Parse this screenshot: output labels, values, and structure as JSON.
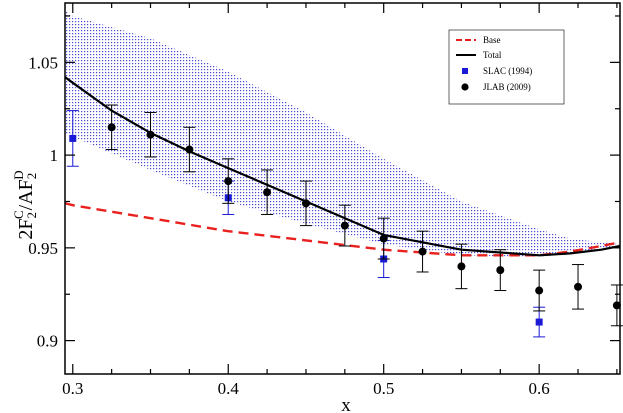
{
  "chart_data": {
    "type": "line",
    "xlabel": "x",
    "ylabel": {
      "prefix": "2F",
      "sub1": "2",
      "sup1": "C",
      "mid": "/AF",
      "sub2": "2",
      "sup2": "D"
    },
    "xlim": [
      0.295,
      0.652
    ],
    "ylim": [
      0.882,
      1.082
    ],
    "xticks": [
      0.3,
      0.4,
      0.5,
      0.6
    ],
    "xtick_labels": [
      "0.3",
      "0.4",
      "0.5",
      "0.6"
    ],
    "yticks": [
      0.9,
      0.95,
      1.0,
      1.05
    ],
    "ytick_labels": [
      "0.9",
      "0.95",
      "1",
      "1.05"
    ],
    "legend_position": "top-right",
    "colors": {
      "base": "#e8201e",
      "total": "#000000",
      "slac": "#1a1ad6",
      "jlab": "#000000",
      "band": "#4a4ad8"
    },
    "band": {
      "x": [
        0.295,
        0.3,
        0.35,
        0.4,
        0.45,
        0.5,
        0.55,
        0.6,
        0.62,
        0.652
      ],
      "upper": [
        1.078,
        1.075,
        1.063,
        1.045,
        1.023,
        0.998,
        0.975,
        0.96,
        0.955,
        0.952
      ],
      "lower": [
        1.012,
        1.01,
        0.992,
        0.975,
        0.963,
        0.952,
        0.946,
        0.945,
        0.947,
        0.95
      ]
    },
    "series": [
      {
        "name": "Base",
        "style": "dashed",
        "x": [
          0.295,
          0.3,
          0.35,
          0.4,
          0.45,
          0.5,
          0.55,
          0.6,
          0.62,
          0.64,
          0.652
        ],
        "y": [
          0.974,
          0.973,
          0.966,
          0.959,
          0.954,
          0.949,
          0.946,
          0.946,
          0.948,
          0.951,
          0.953
        ]
      },
      {
        "name": "Total",
        "style": "solid",
        "x": [
          0.295,
          0.3,
          0.325,
          0.35,
          0.375,
          0.4,
          0.45,
          0.5,
          0.55,
          0.6,
          0.62,
          0.64,
          0.652
        ],
        "y": [
          1.042,
          1.039,
          1.024,
          1.012,
          1.002,
          0.993,
          0.975,
          0.957,
          0.949,
          0.946,
          0.947,
          0.949,
          0.951
        ]
      },
      {
        "name": "SLAC (1994)",
        "style": "square-markers",
        "points": [
          {
            "x": 0.3,
            "y": 1.009,
            "err": 0.015
          },
          {
            "x": 0.4,
            "y": 0.977,
            "err": 0.009
          },
          {
            "x": 0.5,
            "y": 0.944,
            "err": 0.01
          },
          {
            "x": 0.6,
            "y": 0.91,
            "err": 0.008
          }
        ]
      },
      {
        "name": "JLAB (2009)",
        "style": "circle-markers",
        "points": [
          {
            "x": 0.325,
            "y": 1.015,
            "err": 0.012
          },
          {
            "x": 0.35,
            "y": 1.011,
            "err": 0.012
          },
          {
            "x": 0.375,
            "y": 1.003,
            "err": 0.012
          },
          {
            "x": 0.4,
            "y": 0.986,
            "err": 0.012
          },
          {
            "x": 0.425,
            "y": 0.98,
            "err": 0.012
          },
          {
            "x": 0.45,
            "y": 0.974,
            "err": 0.012
          },
          {
            "x": 0.475,
            "y": 0.962,
            "err": 0.011
          },
          {
            "x": 0.5,
            "y": 0.955,
            "err": 0.011
          },
          {
            "x": 0.525,
            "y": 0.948,
            "err": 0.011
          },
          {
            "x": 0.55,
            "y": 0.94,
            "err": 0.012
          },
          {
            "x": 0.575,
            "y": 0.938,
            "err": 0.011
          },
          {
            "x": 0.6,
            "y": 0.927,
            "err": 0.011
          },
          {
            "x": 0.625,
            "y": 0.929,
            "err": 0.012
          },
          {
            "x": 0.65,
            "y": 0.919,
            "err": 0.011
          }
        ]
      }
    ]
  }
}
